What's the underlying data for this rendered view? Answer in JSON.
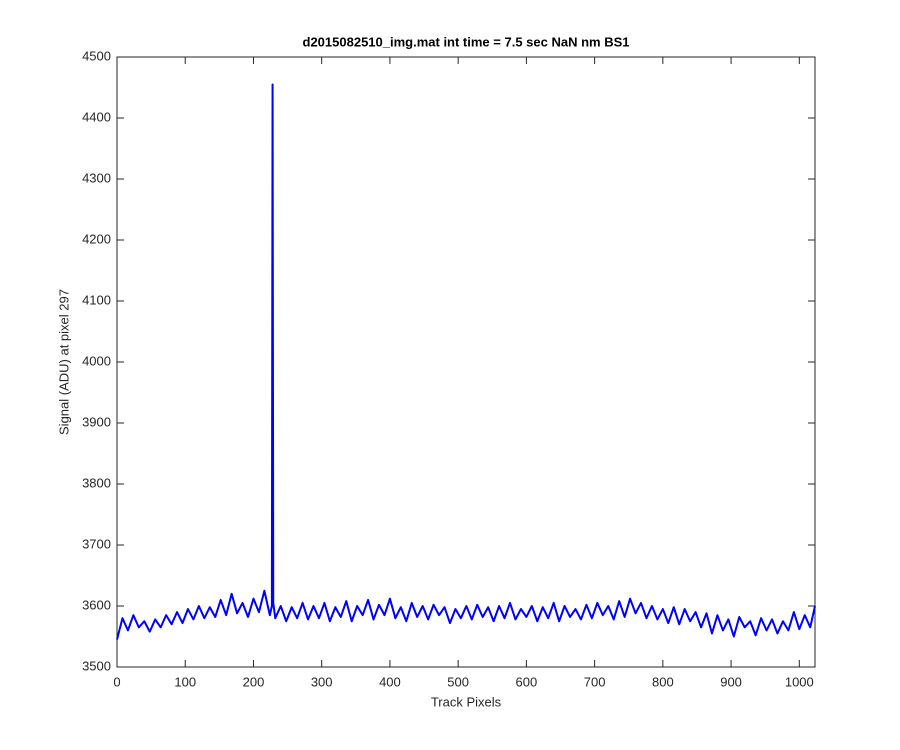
{
  "chart_data": {
    "type": "line",
    "title": "d2015082510_img.mat int time = 7.5 sec  NaN nm BS1",
    "x_label": "Track Pixels",
    "y_label": "Signal (ADU) at pixel 297",
    "x": [
      0,
      8,
      16,
      24,
      32,
      40,
      48,
      56,
      64,
      72,
      80,
      88,
      96,
      104,
      112,
      120,
      128,
      136,
      144,
      152,
      160,
      168,
      176,
      184,
      192,
      200,
      208,
      216,
      224,
      227,
      228,
      229,
      232,
      240,
      248,
      256,
      264,
      272,
      280,
      288,
      296,
      304,
      312,
      320,
      328,
      336,
      344,
      352,
      360,
      368,
      376,
      384,
      392,
      400,
      408,
      416,
      424,
      432,
      440,
      448,
      456,
      464,
      472,
      480,
      488,
      496,
      504,
      512,
      520,
      528,
      536,
      544,
      552,
      560,
      568,
      576,
      584,
      592,
      600,
      608,
      616,
      624,
      632,
      640,
      648,
      656,
      664,
      672,
      680,
      688,
      696,
      704,
      712,
      720,
      728,
      736,
      744,
      752,
      760,
      768,
      776,
      784,
      792,
      800,
      808,
      816,
      824,
      832,
      840,
      848,
      856,
      864,
      872,
      880,
      888,
      896,
      904,
      912,
      920,
      928,
      936,
      944,
      952,
      960,
      968,
      976,
      984,
      992,
      1000,
      1008,
      1016,
      1023
    ],
    "series": [
      {
        "color": "#0000ff",
        "values": [
          3545,
          3580,
          3560,
          3585,
          3565,
          3575,
          3558,
          3578,
          3565,
          3585,
          3570,
          3590,
          3572,
          3595,
          3578,
          3600,
          3580,
          3598,
          3582,
          3610,
          3585,
          3620,
          3588,
          3605,
          3582,
          3612,
          3590,
          3625,
          3585,
          3600,
          4455,
          3605,
          3580,
          3600,
          3575,
          3598,
          3580,
          3605,
          3578,
          3600,
          3580,
          3605,
          3575,
          3598,
          3582,
          3608,
          3575,
          3600,
          3585,
          3610,
          3578,
          3602,
          3585,
          3612,
          3580,
          3598,
          3575,
          3605,
          3582,
          3600,
          3578,
          3602,
          3585,
          3598,
          3572,
          3595,
          3580,
          3600,
          3578,
          3602,
          3582,
          3598,
          3575,
          3600,
          3580,
          3605,
          3578,
          3595,
          3582,
          3600,
          3575,
          3598,
          3580,
          3605,
          3575,
          3600,
          3582,
          3595,
          3578,
          3602,
          3580,
          3605,
          3585,
          3600,
          3578,
          3608,
          3582,
          3612,
          3588,
          3605,
          3580,
          3600,
          3578,
          3595,
          3572,
          3598,
          3570,
          3595,
          3575,
          3590,
          3565,
          3588,
          3555,
          3585,
          3560,
          3578,
          3550,
          3582,
          3565,
          3575,
          3552,
          3580,
          3560,
          3578,
          3555,
          3575,
          3560,
          3590,
          3562,
          3585,
          3565,
          3600
        ]
      }
    ],
    "xlim": [
      0,
      1023
    ],
    "ylim": [
      3500,
      4500
    ],
    "xticks": [
      0,
      100,
      200,
      300,
      400,
      500,
      600,
      700,
      800,
      900,
      1000
    ],
    "yticks": [
      3500,
      3600,
      3700,
      3800,
      3900,
      4000,
      4100,
      4200,
      4300,
      4400,
      4500
    ],
    "grid": false
  }
}
